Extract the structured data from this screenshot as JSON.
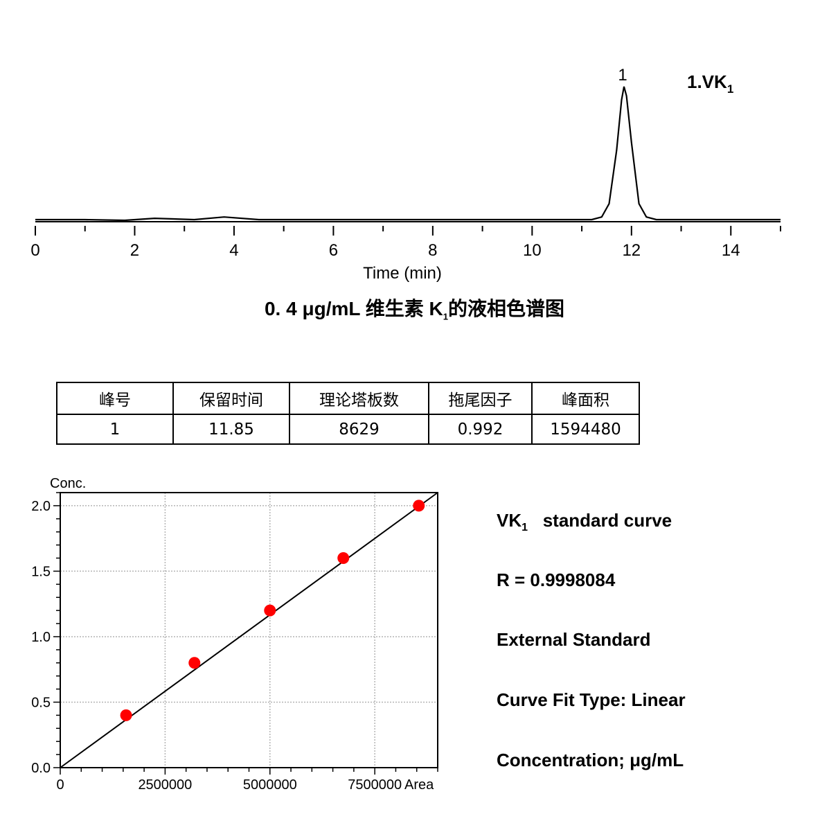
{
  "chart_data": [
    {
      "type": "line",
      "xlabel": "Time (min)",
      "xlim": [
        0,
        15
      ],
      "x_ticks": [
        "0",
        "2",
        "4",
        "6",
        "8",
        "10",
        "12",
        "14"
      ],
      "grid": false,
      "peaks": [
        {
          "label": "1",
          "x": 11.85
        }
      ],
      "series": [
        {
          "name": "1.VK",
          "name_sub": "1",
          "x": [
            0,
            1.0,
            1.8,
            2.4,
            3.2,
            3.8,
            4.5,
            6.0,
            7.0,
            8.0,
            9.5,
            10.5,
            11.2,
            11.4,
            11.55,
            11.7,
            11.8,
            11.85,
            11.9,
            12.0,
            12.15,
            12.3,
            12.5,
            13.0,
            14.0,
            15.0
          ],
          "y": [
            0.0,
            0.0,
            -0.005,
            0.01,
            0.0,
            0.02,
            0.0,
            0.0,
            0.0,
            0.0,
            0.0,
            0.0,
            0.0,
            0.02,
            0.12,
            0.52,
            0.9,
            1.0,
            0.93,
            0.58,
            0.12,
            0.02,
            0.0,
            0.0,
            0.0,
            0.0
          ]
        }
      ],
      "y_unit_note": ""
    },
    {
      "type": "scatter",
      "ylabel": "Conc.",
      "xlabel": "Area",
      "xlim": [
        0,
        9000000
      ],
      "ylim": [
        0.0,
        2.1
      ],
      "x_ticks": [
        "0",
        "2500000",
        "5000000",
        "7500000"
      ],
      "y_ticks": [
        "0.0",
        "0.5",
        "1.0",
        "1.5",
        "2.0"
      ],
      "grid": true,
      "series": [
        {
          "name": "",
          "x": [
            1570000,
            3200000,
            5000000,
            6750000,
            8550000
          ],
          "y": [
            0.4,
            0.8,
            1.2,
            1.6,
            2.0
          ]
        }
      ],
      "fit_line": {
        "x": [
          0,
          9000000
        ],
        "y": [
          0.0,
          2.1
        ]
      },
      "point_color": "#ff0000"
    }
  ],
  "chrom_caption": {
    "prefix": "0. 4  μg/mL 维生素 K",
    "sub": "1",
    "suffix": "的液相色谱图"
  },
  "peak_table": {
    "headers": [
      "峰号",
      "保留时间",
      "理论塔板数",
      "拖尾因子",
      "峰面积"
    ],
    "rows": [
      [
        "1",
        "11.85",
        "8629",
        "0.992",
        "1594480"
      ]
    ]
  },
  "side_info": {
    "curve_name": "VK",
    "curve_sub": "1",
    "curve_suffix": "standard curve",
    "r_value": "R = 0.9998084",
    "method": "External Standard",
    "fit_type": "Curve Fit Type: Linear",
    "units": "Concentration; μg/mL"
  }
}
